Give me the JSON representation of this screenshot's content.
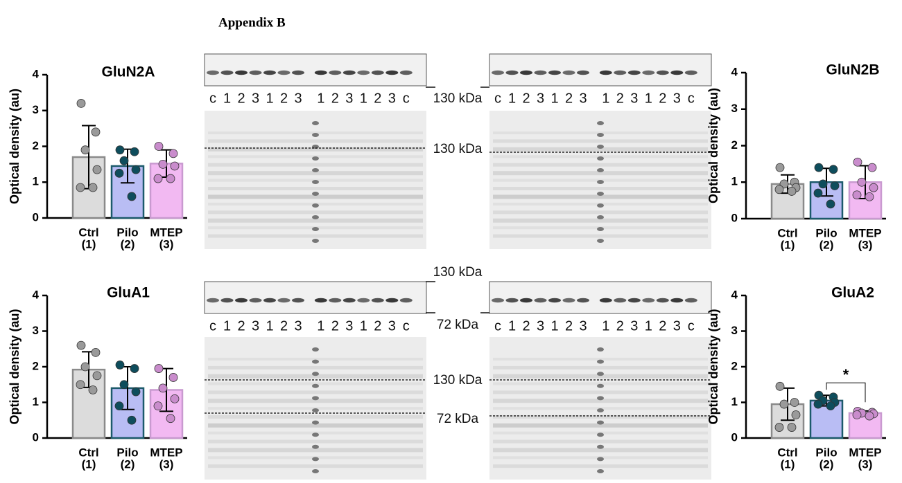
{
  "header": {
    "title": "Appendix B"
  },
  "chart_data": [
    {
      "type": "bar",
      "title": "GluN2A",
      "ylabel": "Optical density (au)",
      "categories": [
        "Ctrl",
        "Pilo",
        "MTEP"
      ],
      "category_groups": [
        "(1)",
        "(2)",
        "(3)"
      ],
      "values": [
        1.7,
        1.45,
        1.52
      ],
      "errors": [
        0.88,
        0.47,
        0.38
      ],
      "points": [
        [
          3.2,
          2.4,
          1.9,
          1.35,
          0.85,
          0.85
        ],
        [
          1.9,
          1.85,
          1.6,
          1.35,
          1.25,
          0.6
        ],
        [
          2.0,
          1.8,
          1.5,
          1.45,
          1.1,
          1.1
        ]
      ],
      "colors": [
        "#dcdcdc",
        "#b9bdf4",
        "#f2b9f2"
      ],
      "edge_colors": [
        "#8a8a8a",
        "#1c5a6b",
        "#c99ad0"
      ],
      "dot_colors": [
        "#9a9a9a",
        "#0e4d5c",
        "#c98ccc"
      ],
      "ylim": [
        0,
        4
      ],
      "yticks": [
        0,
        1,
        2,
        3,
        4
      ]
    },
    {
      "type": "bar",
      "title": "GluN2B",
      "ylabel": "Optical density (au)",
      "categories": [
        "Ctrl",
        "Pilo",
        "MTEP"
      ],
      "category_groups": [
        "(1)",
        "(2)",
        "(3)"
      ],
      "values": [
        0.95,
        1.0,
        1.0
      ],
      "errors": [
        0.25,
        0.38,
        0.45
      ],
      "points": [
        [
          1.4,
          1.0,
          0.95,
          0.85,
          0.8,
          0.75
        ],
        [
          1.4,
          1.35,
          0.95,
          0.9,
          0.7,
          0.4
        ],
        [
          1.55,
          1.4,
          1.0,
          0.85,
          0.65,
          0.6
        ]
      ],
      "colors": [
        "#dcdcdc",
        "#b9bdf4",
        "#f2b9f2"
      ],
      "edge_colors": [
        "#8a8a8a",
        "#1c5a6b",
        "#c99ad0"
      ],
      "dot_colors": [
        "#9a9a9a",
        "#0e4d5c",
        "#c98ccc"
      ],
      "ylim": [
        0,
        4
      ],
      "yticks": [
        0,
        1,
        2,
        3,
        4
      ]
    },
    {
      "type": "bar",
      "title": "GluA1",
      "ylabel": "Optical density (au)",
      "categories": [
        "Ctrl",
        "Pilo",
        "MTEP"
      ],
      "category_groups": [
        "(1)",
        "(2)",
        "(3)"
      ],
      "values": [
        1.92,
        1.4,
        1.35
      ],
      "errors": [
        0.5,
        0.6,
        0.6
      ],
      "points": [
        [
          2.6,
          2.4,
          2.0,
          1.75,
          1.5,
          1.35
        ],
        [
          2.05,
          1.95,
          1.5,
          1.3,
          0.9,
          0.5
        ],
        [
          1.95,
          1.7,
          1.4,
          1.1,
          0.9,
          0.55
        ]
      ],
      "colors": [
        "#dcdcdc",
        "#b9bdf4",
        "#f2b9f2"
      ],
      "edge_colors": [
        "#8a8a8a",
        "#1c5a6b",
        "#c99ad0"
      ],
      "dot_colors": [
        "#9a9a9a",
        "#0e4d5c",
        "#c98ccc"
      ],
      "ylim": [
        0,
        4
      ],
      "yticks": [
        0,
        1,
        2,
        3,
        4
      ]
    },
    {
      "type": "bar",
      "title": "GluA2",
      "ylabel": "Optical density (au)",
      "categories": [
        "Ctrl",
        "Pilo",
        "MTEP"
      ],
      "category_groups": [
        "(1)",
        "(2)",
        "(3)"
      ],
      "values": [
        0.95,
        1.05,
        0.7
      ],
      "errors": [
        0.45,
        0.15,
        0.06
      ],
      "points": [
        [
          1.45,
          1.0,
          0.95,
          0.65,
          0.3,
          0.3
        ],
        [
          1.2,
          1.15,
          1.05,
          1.0,
          0.95,
          0.9
        ],
        [
          0.75,
          0.72,
          0.7,
          0.68,
          0.65,
          0.62
        ]
      ],
      "colors": [
        "#dcdcdc",
        "#b9bdf4",
        "#f2b9f2"
      ],
      "edge_colors": [
        "#8a8a8a",
        "#1c5a6b",
        "#c99ad0"
      ],
      "dot_colors": [
        "#9a9a9a",
        "#0e4d5c",
        "#c98ccc"
      ],
      "ylim": [
        0,
        4
      ],
      "yticks": [
        0,
        1,
        2,
        3,
        4
      ],
      "annotation": {
        "text": "*",
        "categories": [
          1,
          2
        ]
      }
    }
  ],
  "blots": [
    {
      "lanes": [
        "c",
        "1",
        "2",
        "3",
        "1",
        "2",
        "3",
        "1",
        "2",
        "3",
        "1",
        "2",
        "3",
        "c"
      ]
    },
    {
      "lanes": [
        "c",
        "1",
        "2",
        "3",
        "1",
        "2",
        "3",
        "1",
        "2",
        "3",
        "1",
        "2",
        "3",
        "c"
      ]
    },
    {
      "lanes": [
        "c",
        "1",
        "2",
        "3",
        "1",
        "2",
        "3",
        "1",
        "2",
        "3",
        "1",
        "2",
        "3",
        "c"
      ]
    },
    {
      "lanes": [
        "c",
        "1",
        "2",
        "3",
        "1",
        "2",
        "3",
        "1",
        "2",
        "3",
        "1",
        "2",
        "3",
        "c"
      ]
    }
  ],
  "markers": [
    "130 kDa",
    "130 kDa",
    "130 kDa",
    "72 kDa",
    "130 kDa",
    "72 kDa"
  ]
}
